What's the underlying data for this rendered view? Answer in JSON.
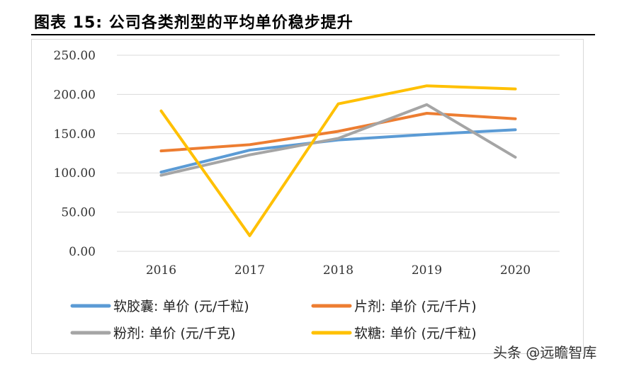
{
  "header": {
    "title": "图表 15:   公司各类剂型的平均单价稳步提升"
  },
  "watermark": "头条 @远瞻智库",
  "chart_data": {
    "type": "line",
    "title": "",
    "categories": [
      "2016",
      "2017",
      "2018",
      "2019",
      "2020"
    ],
    "ylim": [
      0,
      250
    ],
    "yticks": [
      "0.00",
      "50.00",
      "100.00",
      "150.00",
      "200.00",
      "250.00"
    ],
    "grid": true,
    "legend_position": "bottom",
    "series": [
      {
        "name": "软胶囊: 单价 (元/千粒)",
        "color": "#5b9bd5",
        "values": [
          101,
          129,
          142,
          149,
          155
        ]
      },
      {
        "name": "片剂: 单价 (元/千片)",
        "color": "#ed7d31",
        "values": [
          128,
          136,
          153,
          176,
          169
        ]
      },
      {
        "name": "粉剂: 单价 (元/千克)",
        "color": "#a5a5a5",
        "values": [
          97,
          123,
          144,
          187,
          120
        ]
      },
      {
        "name": "软糖: 单价 (元/千粒)",
        "color": "#ffc000",
        "values": [
          179,
          20,
          188,
          211,
          207
        ]
      }
    ]
  }
}
